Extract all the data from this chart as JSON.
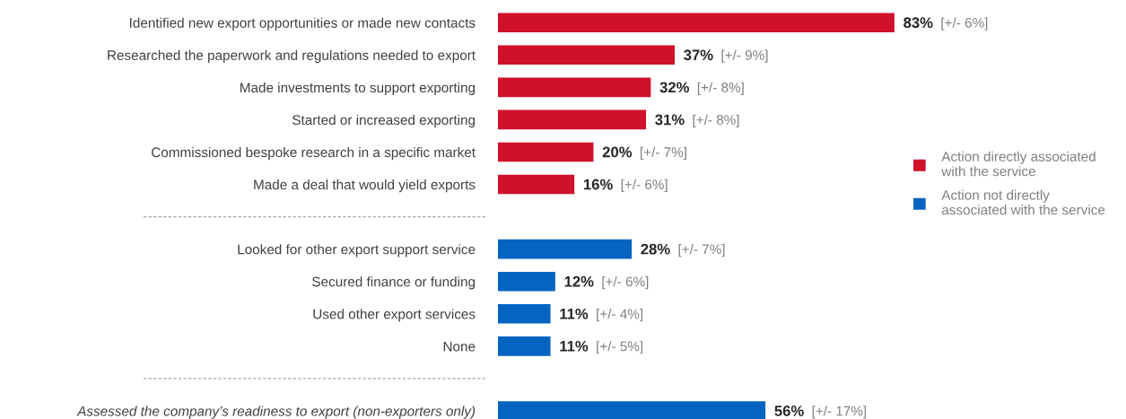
{
  "chart_data": {
    "type": "bar",
    "orientation": "horizontal",
    "tick_labels": "y",
    "grid": false,
    "legend": "right",
    "categories": [
      "Identified new export opportunities or made new contacts",
      "Researched the paperwork and regulations needed to export",
      "Made investments to support exporting",
      "Started or increased exporting",
      "Commissioned bespoke research in a specific market",
      "Made a deal that would yield exports",
      null,
      "Looked for other export support service",
      "Secured finance or funding",
      "Used other export services",
      "None",
      null,
      "Assessed the company’s readiness to export (non-exporters only)"
    ],
    "series": [
      {
        "name": "Action directly associated\nwith the service",
        "color": "#d0112b",
        "values": [
          83,
          37,
          32,
          31,
          20,
          16,
          null,
          null,
          null,
          null,
          null,
          null,
          null
        ],
        "value_labels": [
          "83%",
          "37%",
          "32%",
          "31%",
          "20%",
          "16%",
          null,
          null,
          null,
          null,
          null,
          null,
          null
        ]
      },
      {
        "name": "Action not directly\nassociated with the service",
        "color": "#0563c1",
        "values": [
          null,
          null,
          null,
          null,
          null,
          null,
          null,
          28,
          12,
          11,
          11,
          null,
          56
        ],
        "value_labels": [
          null,
          null,
          null,
          null,
          null,
          null,
          null,
          "28%",
          "12%",
          "11%",
          "11%",
          null,
          "56%"
        ]
      }
    ],
    "annotations": [
      "[+/- 6%]",
      "[+/- 9%]",
      "[+/- 8%]",
      "[+/- 8%]",
      "[+/- 7%]",
      "[+/- 6%]",
      "[+/- 7%]",
      "[+/- 6%]",
      "[+/- 4%]",
      "[+/- 5%]",
      "[+/- 17%]"
    ]
  }
}
